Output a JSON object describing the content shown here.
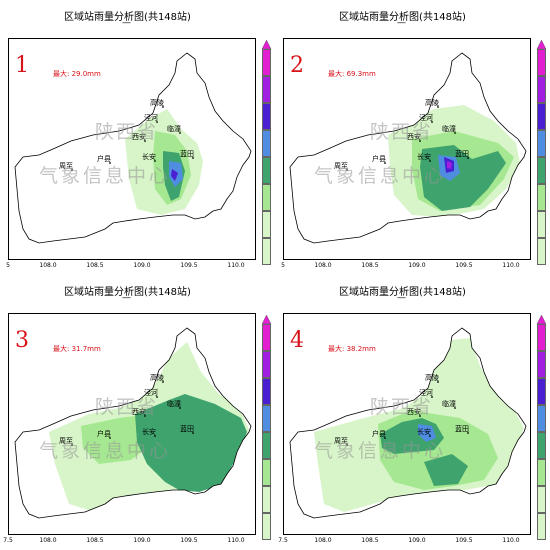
{
  "panels": [
    {
      "title": "区域站雨量分析图(共148站)",
      "dash": "—",
      "number": "1",
      "max_label": "最大: 29.0mm"
    },
    {
      "title": "区域站雨量分析图(共148站)",
      "dash": "—",
      "number": "2",
      "max_label": "最大: 69.3mm"
    },
    {
      "title": "区域站雨量分析图(共148站)",
      "dash": "—",
      "number": "3",
      "max_label": "最大: 31.7mm"
    },
    {
      "title": "区域站雨量分析图(共148站)",
      "dash": "—",
      "number": "4",
      "max_label": "最大: 38.2mm"
    }
  ],
  "cities": [
    "高陵",
    "泾河",
    "临潼",
    "西安",
    "长安",
    "户县",
    "周至",
    "蓝田"
  ],
  "watermark": {
    "line1": "陕西省",
    "line2": "气象信息中心"
  },
  "x_ticks": [
    "5",
    "108.0",
    "108.5",
    "109.0",
    "109.5",
    "110.0"
  ],
  "x_ticks_bottom": [
    "7.5",
    "108.0",
    "108.5",
    "109.0",
    "109.5",
    "110.0"
  ],
  "colors": {
    "light": "#d7f5c8",
    "mid": "#a6e891",
    "dark": "#3fa36d",
    "blue": "#4f8de0",
    "indigo": "#4a1fd1",
    "purple": "#a01fe0",
    "magenta": "#e21fd0",
    "outline": "#000000"
  }
}
